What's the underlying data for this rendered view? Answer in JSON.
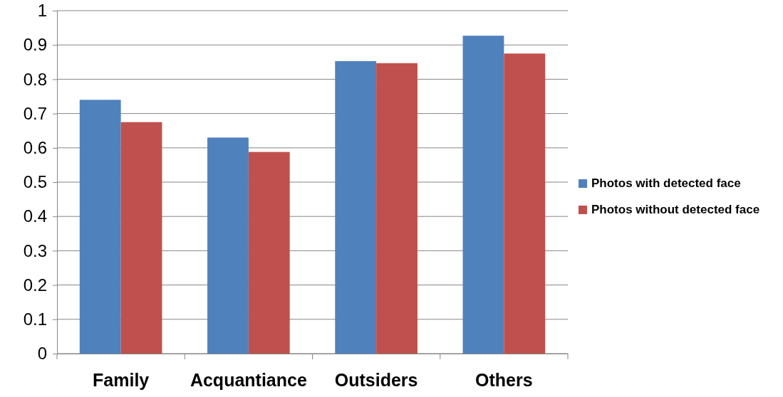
{
  "chart_data": {
    "type": "bar",
    "categories": [
      "Family",
      "Acquantiance",
      "Outsiders",
      "Others"
    ],
    "series": [
      {
        "name": "Photos with detected face",
        "color": "#4f81bd",
        "values": [
          0.74,
          0.63,
          0.853,
          0.927
        ]
      },
      {
        "name": "Photos without detected face",
        "color": "#c0504d",
        "values": [
          0.675,
          0.588,
          0.847,
          0.875
        ]
      }
    ],
    "ylim": [
      0,
      1
    ],
    "yticks": [
      0,
      0.1,
      0.2,
      0.3,
      0.4,
      0.5,
      0.6,
      0.7,
      0.8,
      0.9,
      1
    ],
    "grid": "y",
    "legend": "right"
  }
}
